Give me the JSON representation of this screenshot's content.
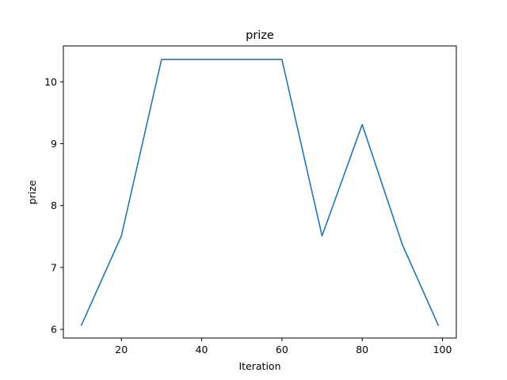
{
  "chart_data": {
    "type": "line",
    "title": "prize",
    "xlabel": "Iteration",
    "ylabel": "prize",
    "xlim": [
      5.55,
      103.45
    ],
    "ylim": [
      5.86,
      10.58
    ],
    "xticks": [
      20,
      40,
      60,
      80,
      100
    ],
    "yticks": [
      6,
      7,
      8,
      9,
      10
    ],
    "grid": false,
    "series": [
      {
        "color": "#1f77b4",
        "x": [
          10,
          20,
          30,
          40,
          50,
          60,
          70,
          80,
          90,
          99
        ],
        "y": [
          6.06,
          7.51,
          10.36,
          10.36,
          10.36,
          10.36,
          7.51,
          9.31,
          7.37,
          6.06
        ]
      }
    ]
  }
}
